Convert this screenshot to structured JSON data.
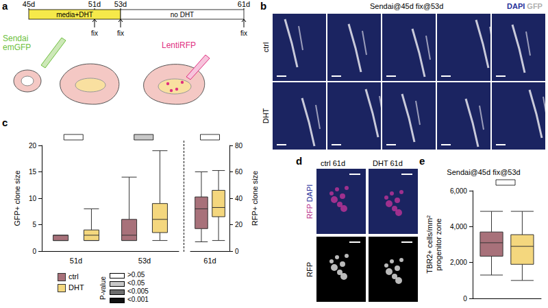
{
  "panel_labels": [
    "a",
    "b",
    "c",
    "d",
    "e"
  ],
  "timeline": {
    "days": [
      "45d",
      "51d",
      "53d",
      "61d"
    ],
    "phases": [
      "media+DHT",
      "no DHT"
    ],
    "fix": "fix",
    "fix_days": [
      "51d",
      "53d",
      "61d"
    ],
    "infections": [
      {
        "lines": [
          "Sendai",
          "emGFP"
        ],
        "color": "#6cbf3c"
      },
      {
        "lines": [
          "LentiRFP"
        ],
        "color": "#e0307f"
      }
    ]
  },
  "images_b": {
    "title": "Sendai@45d fix@53d",
    "stains": [
      {
        "text": "DAPI",
        "color": "#27309a"
      },
      {
        "text": "GFP",
        "color": "#b0b0b0"
      }
    ],
    "rows": [
      "ctrl",
      "DHT"
    ],
    "columns": 5
  },
  "images_d": {
    "columns": [
      "ctrl 61d",
      "DHT 61d"
    ],
    "rows": [
      [
        {
          "text": "RFP",
          "color": "#b8338f"
        },
        {
          "text": "DAPI",
          "color": "#27309a"
        }
      ],
      [
        {
          "text": "RFP",
          "color": "#000000"
        }
      ]
    ]
  },
  "pvalue_legend": {
    "title": "P-value",
    "levels": [
      {
        "label": ">0.05",
        "color": "#ffffff"
      },
      {
        "label": "<0.05",
        "color": "#c8c8c8"
      },
      {
        "label": "<0.005",
        "color": "#6e6e6e"
      },
      {
        "label": "<0.001",
        "color": "#111111"
      }
    ]
  },
  "chart_data": [
    {
      "type": "boxplot",
      "categories": [
        "51d",
        "53d"
      ],
      "ylabel": "GFP+ clone size",
      "ylim": [
        0,
        20
      ],
      "yticks": [
        0,
        5,
        10,
        15,
        20
      ],
      "grid": false,
      "pvalues": [
        ">0.05",
        "<0.05"
      ],
      "series": [
        {
          "name": "ctrl",
          "color": "#a8717a",
          "values": [
            [
              2,
              2,
              2,
              3,
              3
            ],
            [
              2,
              2,
              3,
              6,
              14
            ]
          ]
        },
        {
          "name": "DHT",
          "color": "#f4d77e",
          "values": [
            [
              2,
              2,
              3,
              4,
              8
            ],
            [
              2,
              3.5,
              6,
              9,
              19
            ]
          ]
        }
      ]
    },
    {
      "type": "boxplot",
      "categories": [
        "61d"
      ],
      "ylabel": "RFP+ clone size",
      "ylim": [
        0,
        80
      ],
      "yticks": [
        0,
        20,
        40,
        60,
        80
      ],
      "grid": false,
      "pvalues": [
        ">0.05"
      ],
      "series": [
        {
          "name": "ctrl",
          "color": "#a8717a",
          "values": [
            [
              7,
              17,
              32,
              41,
              60
            ]
          ]
        },
        {
          "name": "DHT",
          "color": "#f4d77e",
          "values": [
            [
              8,
              26,
              33,
              46,
              61
            ]
          ]
        }
      ]
    },
    {
      "type": "boxplot",
      "title": "Sendai@45d fix@53d",
      "categories": [
        null
      ],
      "ylabel": "TBR2+ cells/mm²\nprogenitor zone",
      "ylim": [
        0,
        6000
      ],
      "yticks": [
        0,
        2000,
        4000,
        6000
      ],
      "grid": false,
      "pvalues": [
        ">0.05"
      ],
      "series": [
        {
          "name": "ctrl",
          "color": "#a8717a",
          "values": [
            [
              1300,
              2350,
              3100,
              3700,
              4850
            ]
          ]
        },
        {
          "name": "DHT",
          "color": "#f4d77e",
          "values": [
            [
              1000,
              1900,
              2900,
              3550,
              4850
            ]
          ]
        }
      ]
    }
  ]
}
